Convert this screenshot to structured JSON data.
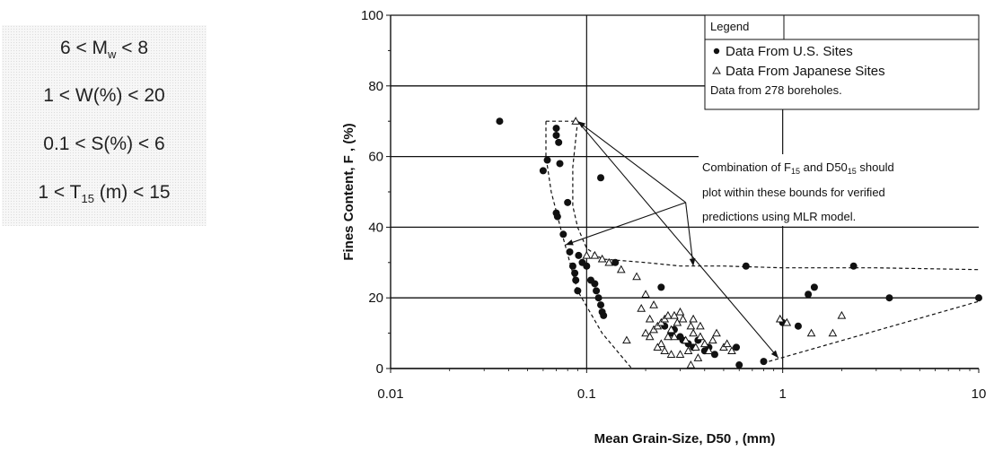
{
  "conditions": {
    "mw": {
      "pre": "6 < M",
      "sub": "w",
      "post": " < 8"
    },
    "w": {
      "pre": "1 < W(%) < 20",
      "sub": "",
      "post": ""
    },
    "s": {
      "pre": "0.1 < S(%) < 6",
      "sub": "",
      "post": ""
    },
    "t": {
      "pre": "1 < T",
      "sub": "15",
      "post": " (m) < 15"
    }
  },
  "chart_data": {
    "type": "scatter",
    "xscale": "log",
    "xlim": [
      0.01,
      10
    ],
    "ylim": [
      0,
      100
    ],
    "xticks": [
      0.01,
      0.1,
      1,
      10
    ],
    "xtick_labels": [
      "0.01",
      "0.1",
      "1",
      "10"
    ],
    "yticks": [
      0,
      20,
      40,
      60,
      80,
      100
    ],
    "ytick_labels": [
      "0",
      "20",
      "40",
      "60",
      "80",
      "100"
    ],
    "grid": true,
    "xlabel": "Mean Grain-Size, D50 , (mm)",
    "ylabel": "Fines Content, F , (%)",
    "legend": {
      "title": "Legend",
      "placement": "top-right",
      "entries": [
        "Data From U.S. Sites",
        "Data From Japanese Sites"
      ],
      "note": "Data from 278 boreholes."
    },
    "annotation": {
      "lines": [
        "Combination of F",
        "15",
        " and D50",
        "15",
        " should",
        "plot within these bounds for verified",
        "predictions using MLR model."
      ]
    },
    "series": [
      {
        "name": "Data From U.S. Sites",
        "marker": "filled-circle",
        "color": "#111111",
        "points": [
          [
            0.036,
            70
          ],
          [
            0.06,
            56
          ],
          [
            0.063,
            59
          ],
          [
            0.07,
            66
          ],
          [
            0.07,
            68
          ],
          [
            0.072,
            64
          ],
          [
            0.073,
            58
          ],
          [
            0.07,
            44
          ],
          [
            0.071,
            43
          ],
          [
            0.076,
            38
          ],
          [
            0.08,
            47
          ],
          [
            0.082,
            33
          ],
          [
            0.085,
            29
          ],
          [
            0.087,
            27
          ],
          [
            0.088,
            25
          ],
          [
            0.09,
            22
          ],
          [
            0.091,
            32
          ],
          [
            0.095,
            30
          ],
          [
            0.1,
            29
          ],
          [
            0.105,
            25
          ],
          [
            0.11,
            24
          ],
          [
            0.112,
            22
          ],
          [
            0.115,
            20
          ],
          [
            0.118,
            18
          ],
          [
            0.12,
            16
          ],
          [
            0.122,
            15
          ],
          [
            0.118,
            54
          ],
          [
            0.14,
            30
          ],
          [
            0.24,
            23
          ],
          [
            0.25,
            12
          ],
          [
            0.27,
            10
          ],
          [
            0.28,
            11
          ],
          [
            0.3,
            9
          ],
          [
            0.31,
            8
          ],
          [
            0.33,
            7
          ],
          [
            0.35,
            6
          ],
          [
            0.37,
            8
          ],
          [
            0.4,
            5
          ],
          [
            0.42,
            6
          ],
          [
            0.45,
            4
          ],
          [
            0.58,
            6
          ],
          [
            0.6,
            1
          ],
          [
            0.65,
            29
          ],
          [
            0.8,
            2
          ],
          [
            1.0,
            13
          ],
          [
            1.2,
            12
          ],
          [
            1.35,
            21
          ],
          [
            1.45,
            23
          ],
          [
            2.3,
            29
          ],
          [
            3.5,
            20
          ],
          [
            10,
            20
          ]
        ]
      },
      {
        "name": "Data From Japanese Sites",
        "marker": "open-triangle",
        "color": "#111111",
        "points": [
          [
            0.088,
            70
          ],
          [
            0.1,
            32
          ],
          [
            0.11,
            32
          ],
          [
            0.12,
            31
          ],
          [
            0.13,
            30
          ],
          [
            0.15,
            28
          ],
          [
            0.18,
            26
          ],
          [
            0.2,
            21
          ],
          [
            0.22,
            18
          ],
          [
            0.16,
            8
          ],
          [
            0.19,
            17
          ],
          [
            0.21,
            14
          ],
          [
            0.2,
            10
          ],
          [
            0.21,
            9
          ],
          [
            0.22,
            11
          ],
          [
            0.23,
            12
          ],
          [
            0.24,
            13
          ],
          [
            0.25,
            14
          ],
          [
            0.26,
            15
          ],
          [
            0.27,
            11
          ],
          [
            0.28,
            9
          ],
          [
            0.29,
            13
          ],
          [
            0.3,
            16
          ],
          [
            0.31,
            14
          ],
          [
            0.32,
            8
          ],
          [
            0.33,
            5
          ],
          [
            0.34,
            12
          ],
          [
            0.35,
            10
          ],
          [
            0.36,
            6
          ],
          [
            0.37,
            3
          ],
          [
            0.38,
            9
          ],
          [
            0.4,
            7
          ],
          [
            0.42,
            5
          ],
          [
            0.44,
            8
          ],
          [
            0.46,
            10
          ],
          [
            0.5,
            6
          ],
          [
            0.52,
            7
          ],
          [
            0.55,
            5
          ],
          [
            0.25,
            5
          ],
          [
            0.27,
            4
          ],
          [
            0.3,
            4
          ],
          [
            0.34,
            1
          ],
          [
            0.26,
            9
          ],
          [
            0.28,
            15
          ],
          [
            0.24,
            7
          ],
          [
            0.23,
            6
          ],
          [
            0.35,
            14
          ],
          [
            0.38,
            12
          ],
          [
            0.97,
            14
          ],
          [
            1.05,
            13
          ],
          [
            1.4,
            10
          ],
          [
            1.8,
            10
          ],
          [
            2.0,
            15
          ]
        ]
      }
    ],
    "bounds": {
      "dashed_paths": [
        [
          [
            0.062,
            70
          ],
          [
            0.09,
            70
          ],
          [
            0.088,
            65
          ],
          [
            0.085,
            57
          ],
          [
            0.085,
            46
          ],
          [
            0.09,
            40
          ],
          [
            0.1,
            34
          ],
          [
            0.12,
            31
          ],
          [
            0.2,
            30
          ],
          [
            0.3,
            29
          ],
          [
            0.5,
            29
          ],
          [
            1.0,
            28.5
          ],
          [
            3,
            28.5
          ],
          [
            10,
            28
          ]
        ],
        [
          [
            0.062,
            70
          ],
          [
            0.062,
            60
          ],
          [
            0.066,
            50
          ],
          [
            0.075,
            38
          ],
          [
            0.09,
            22
          ],
          [
            0.12,
            10
          ],
          [
            0.17,
            0
          ]
        ],
        [
          [
            0.85,
            2
          ],
          [
            10,
            19
          ]
        ]
      ],
      "arrows": [
        [
          [
            0.32,
            47
          ],
          [
            0.09,
            70
          ]
        ],
        [
          [
            0.32,
            47
          ],
          [
            0.078,
            35
          ]
        ],
        [
          [
            0.32,
            47
          ],
          [
            0.35,
            29
          ]
        ],
        [
          [
            0.09,
            70
          ],
          [
            0.95,
            3
          ]
        ]
      ]
    }
  }
}
